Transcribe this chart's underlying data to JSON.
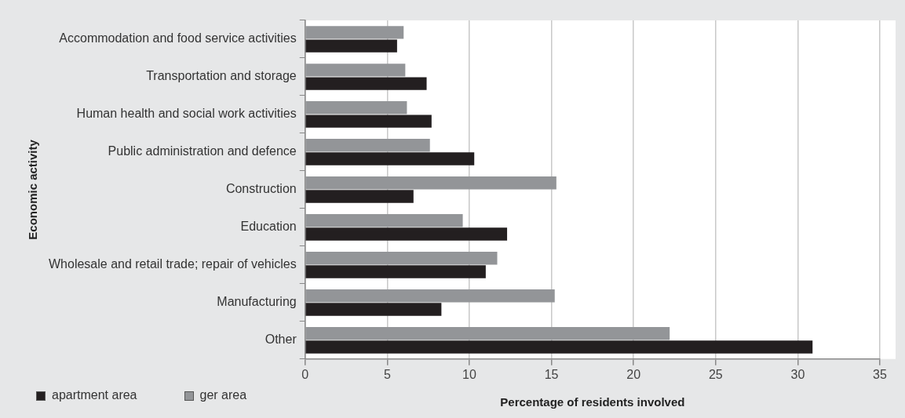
{
  "chart_data": {
    "type": "bar",
    "orientation": "horizontal",
    "xlabel": "Percentage of residents involved",
    "ylabel": "Economic activity",
    "categories": [
      "Accommodation and food service activities",
      "Transportation and storage",
      "Human health and social work activities",
      "Public administration and defence",
      "Construction",
      "Education",
      "Wholesale and retail trade; repair of vehicles",
      "Manufacturing",
      "Other"
    ],
    "series": [
      {
        "name": "apartment area",
        "color": "#231f20",
        "values": [
          5.6,
          7.4,
          7.7,
          10.3,
          6.6,
          12.3,
          11.0,
          8.3,
          30.9
        ]
      },
      {
        "name": "ger area",
        "color": "#939598",
        "values": [
          6.0,
          6.1,
          6.2,
          7.6,
          15.3,
          9.6,
          11.7,
          15.2,
          22.2
        ]
      }
    ],
    "xlim": [
      0,
      35
    ],
    "xticks": [
      0,
      5,
      10,
      15,
      20,
      25,
      30,
      35
    ],
    "grid": "x",
    "legend": "bottom left"
  }
}
